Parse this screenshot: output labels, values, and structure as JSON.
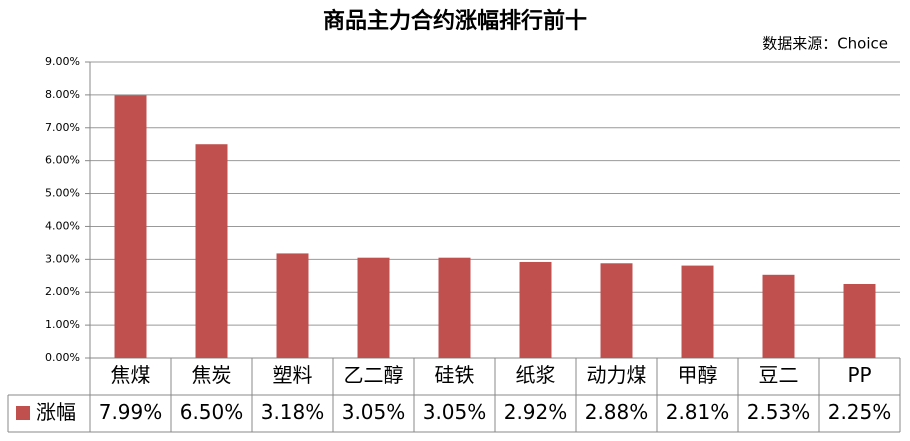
{
  "chart_data": {
    "type": "bar",
    "title": "商品主力合约涨幅排行前十",
    "subtitle": "数据来源：Choice",
    "categories": [
      "焦煤",
      "焦炭",
      "塑料",
      "乙二醇",
      "硅铁",
      "纸浆",
      "动力煤",
      "甲醇",
      "豆二",
      "PP"
    ],
    "series": [
      {
        "name": "涨幅",
        "color": "#c0504d",
        "values": [
          7.99,
          6.5,
          3.18,
          3.05,
          3.05,
          2.92,
          2.88,
          2.81,
          2.53,
          2.25
        ],
        "value_labels": [
          "7.99%",
          "6.50%",
          "3.18%",
          "3.05%",
          "3.05%",
          "2.92%",
          "2.88%",
          "2.81%",
          "2.53%",
          "2.25%"
        ]
      }
    ],
    "ylim": [
      0,
      9
    ],
    "yticks": [
      {
        "value": 0,
        "label": "0.00%"
      },
      {
        "value": 1,
        "label": "1.00%"
      },
      {
        "value": 2,
        "label": "2.00%"
      },
      {
        "value": 3,
        "label": "3.00%"
      },
      {
        "value": 4,
        "label": "4.00%"
      },
      {
        "value": 5,
        "label": "5.00%"
      },
      {
        "value": 6,
        "label": "6.00%"
      },
      {
        "value": 7,
        "label": "7.00%"
      },
      {
        "value": 8,
        "label": "8.00%"
      },
      {
        "value": 9,
        "label": "9.00%"
      }
    ],
    "grid": true
  }
}
